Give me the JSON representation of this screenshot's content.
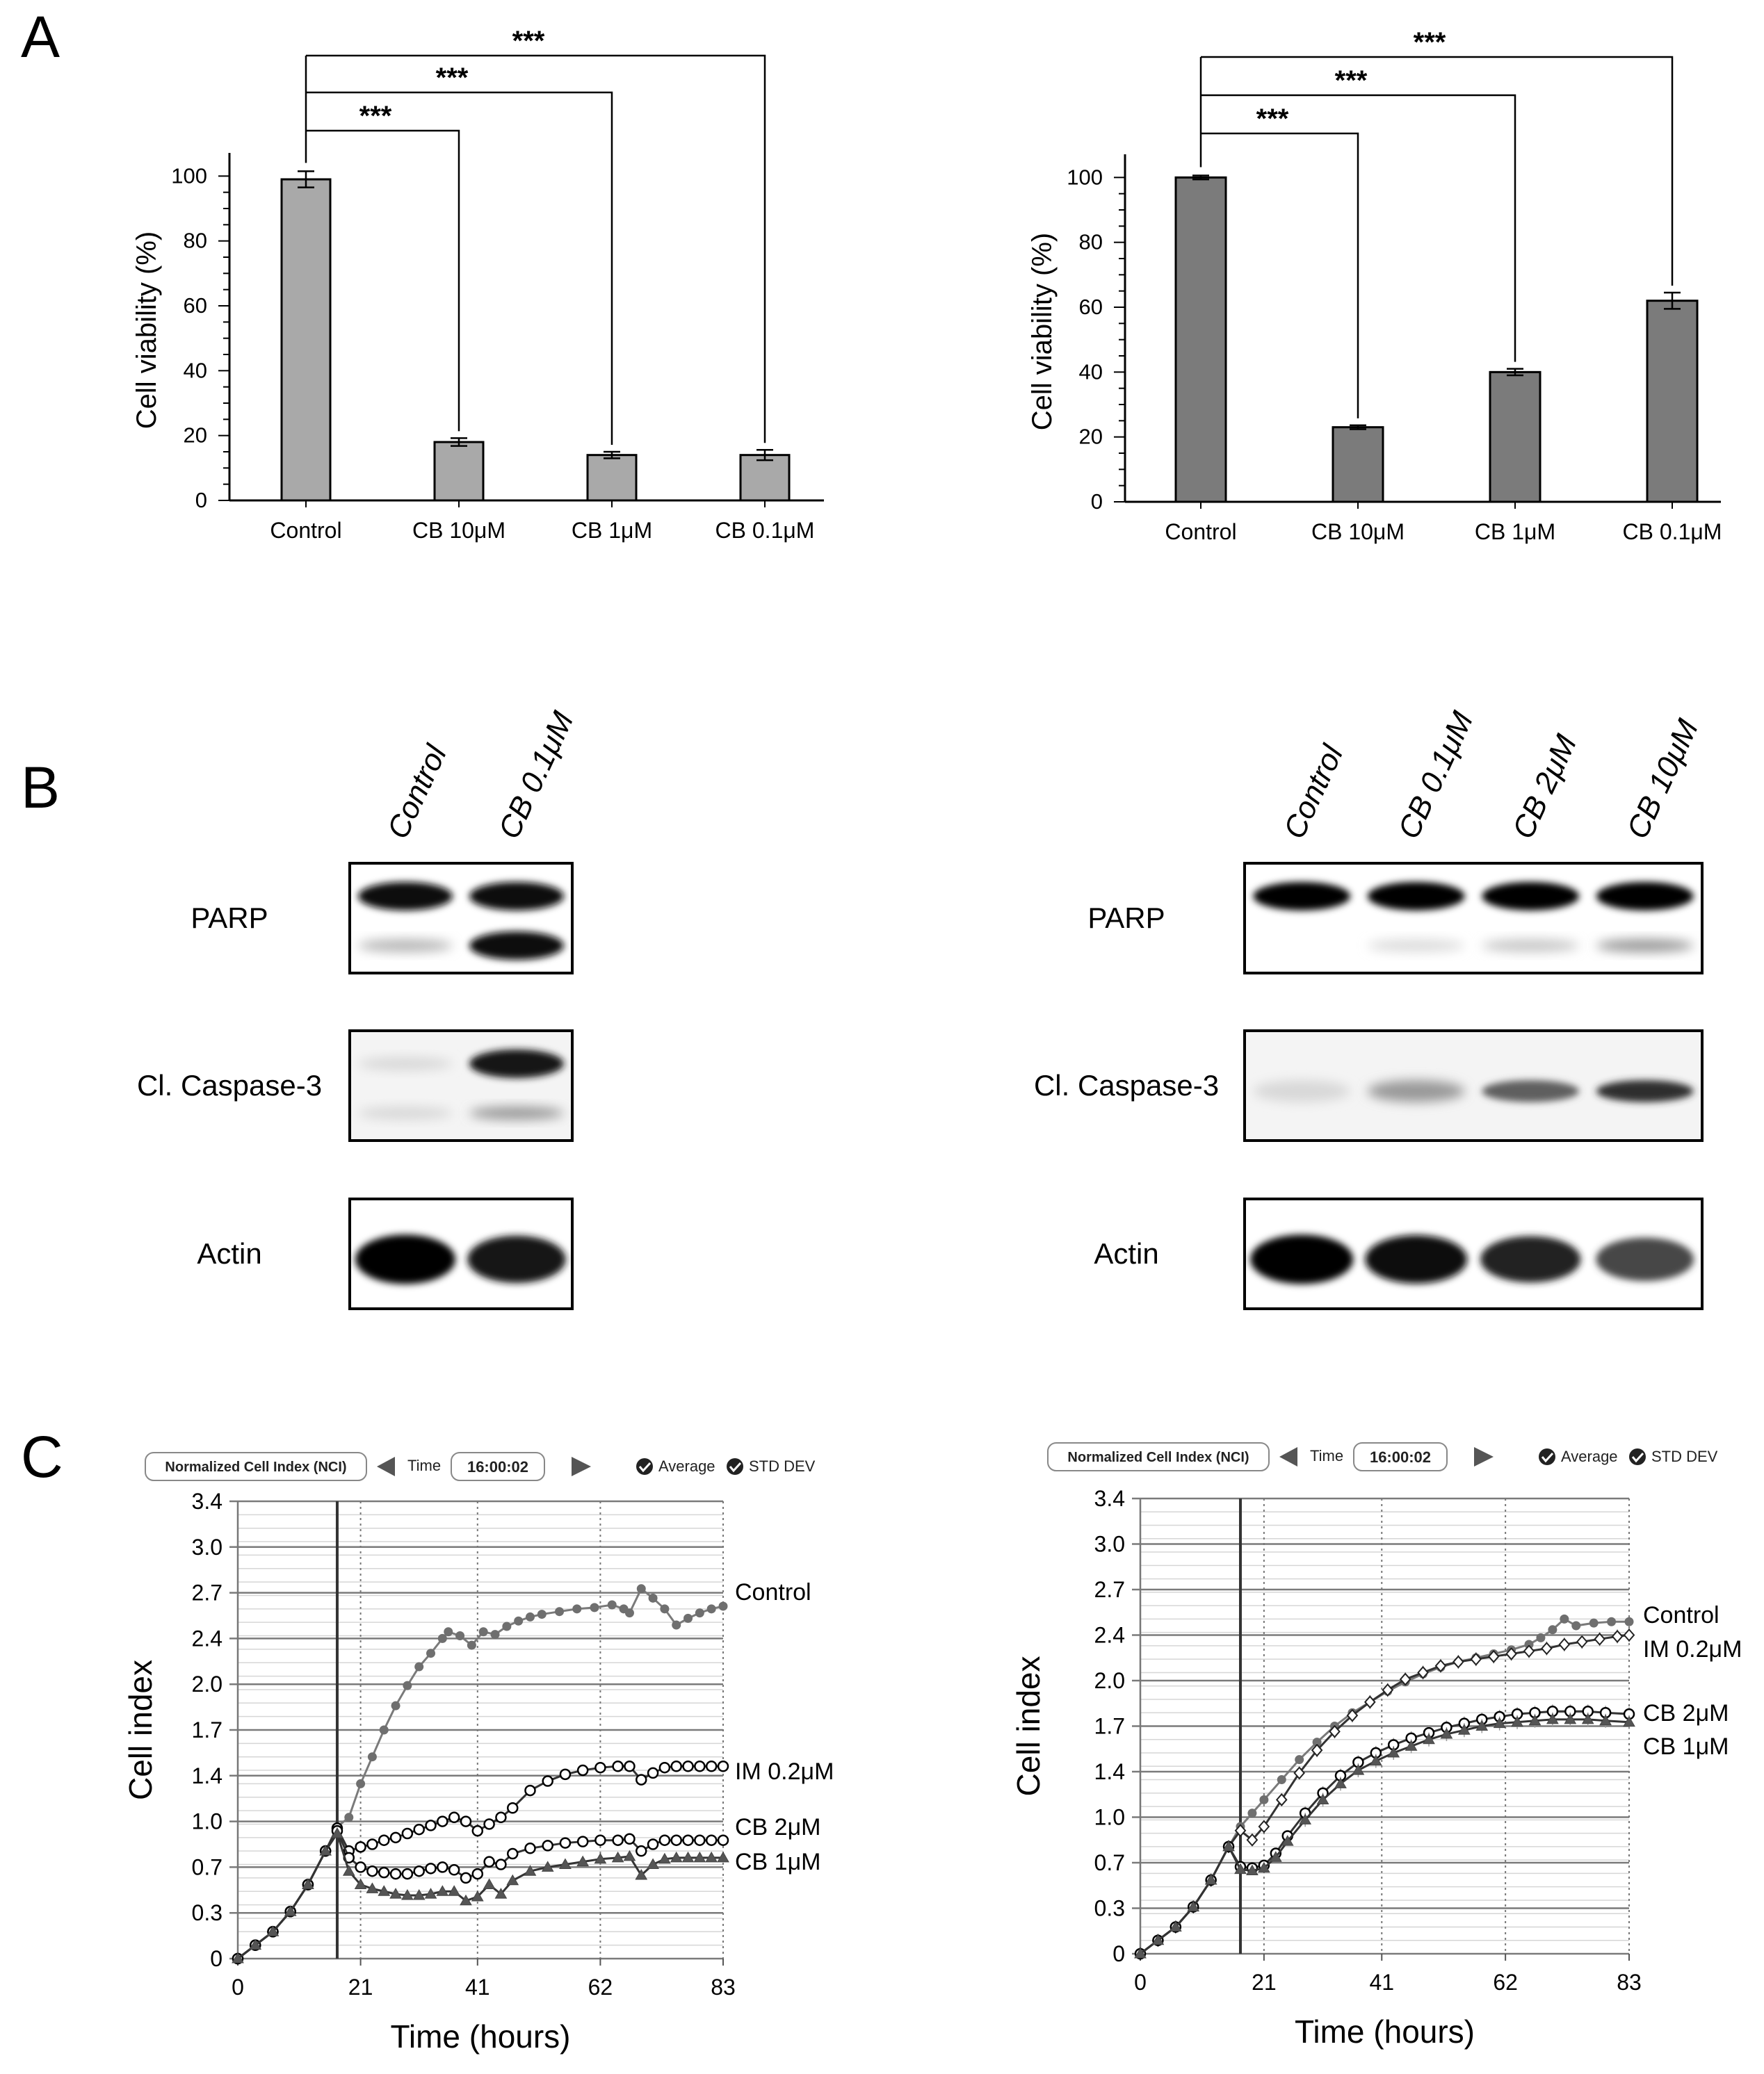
{
  "panel_labels": [
    "A",
    "B",
    "C"
  ],
  "chart_data": [
    {
      "id": "A-left",
      "type": "bar",
      "title": "",
      "xlabel": "",
      "ylabel": "Cell viability (%)",
      "categories": [
        "Control",
        "CB 10μM",
        "CB 1μM",
        "CB 0.1μM"
      ],
      "values": [
        99,
        18,
        14,
        14
      ],
      "errors": [
        2.5,
        1.2,
        1.0,
        1.6
      ],
      "ylim": [
        0,
        105
      ],
      "yticks": [
        0,
        20,
        40,
        60,
        80,
        100
      ],
      "bar_color": "#a9a9a9",
      "significance": [
        {
          "from": "Control",
          "to": "CB 10μM",
          "label": "***"
        },
        {
          "from": "Control",
          "to": "CB 1μM",
          "label": "***"
        },
        {
          "from": "Control",
          "to": "CB 0.1μM",
          "label": "***"
        }
      ]
    },
    {
      "id": "A-right",
      "type": "bar",
      "title": "",
      "xlabel": "",
      "ylabel": "Cell viability (%)",
      "categories": [
        "Control",
        "CB 10μM",
        "CB 1μM",
        "CB 0.1μM"
      ],
      "values": [
        100,
        23,
        40,
        62
      ],
      "errors": [
        0.6,
        0.6,
        1.0,
        2.5
      ],
      "ylim": [
        0,
        105
      ],
      "yticks": [
        0,
        20,
        40,
        60,
        80,
        100
      ],
      "bar_color": "#7b7b7b",
      "significance": [
        {
          "from": "Control",
          "to": "CB 10μM",
          "label": "***"
        },
        {
          "from": "Control",
          "to": "CB 1μM",
          "label": "***"
        },
        {
          "from": "Control",
          "to": "CB 0.1μM",
          "label": "***"
        }
      ]
    },
    {
      "id": "C-left",
      "type": "line",
      "xlabel": "Time (hours)",
      "ylabel": "Cell index",
      "xlim": [
        0,
        83
      ],
      "ylim": [
        0,
        3.4
      ],
      "xticks": [
        0,
        21,
        41,
        62,
        83
      ],
      "ytick_labels": [
        "0",
        "0.3",
        "0.7",
        "1.0",
        "1.4",
        "1.7",
        "2.0",
        "2.4",
        "2.7",
        "3.0",
        "3.4"
      ],
      "treatment_time": 17,
      "ui": {
        "nci_label": "Normalized Cell Index (NCI)",
        "time_label": "Time",
        "time_value": "16:00:02",
        "average_label": "Average",
        "stddev_label": "STD DEV"
      },
      "series": [
        {
          "name": "Control",
          "marker": "filled-circle",
          "x": [
            0,
            3,
            6,
            9,
            12,
            15,
            17,
            19,
            21,
            23,
            25,
            27,
            29,
            31,
            33,
            35,
            36,
            38,
            40,
            42,
            44,
            46,
            48,
            50,
            52,
            55,
            58,
            61,
            64,
            66,
            67,
            69,
            71,
            73,
            75,
            77,
            79,
            81,
            83
          ],
          "y": [
            0,
            0.1,
            0.2,
            0.35,
            0.55,
            0.8,
            0.98,
            1.05,
            1.3,
            1.5,
            1.7,
            1.88,
            2.03,
            2.17,
            2.27,
            2.38,
            2.43,
            2.4,
            2.33,
            2.43,
            2.41,
            2.47,
            2.51,
            2.54,
            2.56,
            2.58,
            2.6,
            2.61,
            2.63,
            2.6,
            2.57,
            2.75,
            2.68,
            2.6,
            2.48,
            2.53,
            2.57,
            2.6,
            2.62
          ]
        },
        {
          "name": "IM 0.2μM",
          "marker": "open-circle",
          "x": [
            0,
            3,
            6,
            9,
            12,
            15,
            17,
            19,
            21,
            23,
            25,
            27,
            29,
            31,
            33,
            35,
            37,
            39,
            41,
            43,
            45,
            47,
            50,
            53,
            56,
            59,
            62,
            65,
            67,
            69,
            71,
            73,
            75,
            77,
            79,
            81,
            83
          ],
          "y": [
            0,
            0.1,
            0.2,
            0.35,
            0.55,
            0.8,
            0.97,
            0.8,
            0.83,
            0.85,
            0.88,
            0.9,
            0.93,
            0.96,
            0.99,
            1.02,
            1.05,
            1.02,
            0.95,
            1.0,
            1.05,
            1.12,
            1.25,
            1.32,
            1.37,
            1.4,
            1.42,
            1.43,
            1.43,
            1.33,
            1.38,
            1.42,
            1.43,
            1.43,
            1.43,
            1.43,
            1.43
          ]
        },
        {
          "name": "CB 2μM",
          "marker": "open-circle",
          "x": [
            0,
            3,
            6,
            9,
            12,
            15,
            17,
            19,
            21,
            23,
            25,
            27,
            29,
            31,
            33,
            35,
            37,
            39,
            41,
            43,
            45,
            47,
            50,
            53,
            56,
            59,
            62,
            65,
            67,
            69,
            71,
            73,
            75,
            77,
            79,
            81,
            83
          ],
          "y": [
            0,
            0.1,
            0.2,
            0.35,
            0.55,
            0.8,
            0.95,
            0.75,
            0.68,
            0.65,
            0.64,
            0.63,
            0.63,
            0.65,
            0.67,
            0.68,
            0.66,
            0.6,
            0.63,
            0.72,
            0.7,
            0.78,
            0.82,
            0.84,
            0.86,
            0.87,
            0.88,
            0.88,
            0.89,
            0.8,
            0.85,
            0.88,
            0.88,
            0.88,
            0.88,
            0.88,
            0.88
          ]
        },
        {
          "name": "CB 1μM",
          "marker": "filled-triangle",
          "x": [
            0,
            3,
            6,
            9,
            12,
            15,
            17,
            19,
            21,
            23,
            25,
            27,
            29,
            31,
            33,
            35,
            37,
            39,
            41,
            43,
            45,
            47,
            50,
            53,
            56,
            59,
            62,
            65,
            67,
            69,
            71,
            73,
            75,
            77,
            79,
            81,
            83
          ],
          "y": [
            0,
            0.1,
            0.2,
            0.35,
            0.55,
            0.8,
            0.93,
            0.65,
            0.55,
            0.52,
            0.5,
            0.48,
            0.47,
            0.47,
            0.48,
            0.5,
            0.5,
            0.43,
            0.46,
            0.55,
            0.48,
            0.58,
            0.65,
            0.68,
            0.7,
            0.72,
            0.74,
            0.75,
            0.76,
            0.62,
            0.7,
            0.74,
            0.75,
            0.75,
            0.75,
            0.75,
            0.75
          ]
        }
      ]
    },
    {
      "id": "C-right",
      "type": "line",
      "xlabel": "Time (hours)",
      "ylabel": "Cell index",
      "xlim": [
        0,
        83
      ],
      "ylim": [
        0,
        3.4
      ],
      "xticks": [
        0,
        21,
        41,
        62,
        83
      ],
      "ytick_labels": [
        "0",
        "0.3",
        "0.7",
        "1.0",
        "1.4",
        "1.7",
        "2.0",
        "2.4",
        "2.7",
        "3.0",
        "3.4"
      ],
      "treatment_time": 17,
      "ui": {
        "nci_label": "Normalized Cell Index (NCI)",
        "time_label": "Time",
        "time_value": "16:00:02",
        "average_label": "Average",
        "stddev_label": "STD DEV"
      },
      "series": [
        {
          "name": "Control",
          "marker": "filled-circle",
          "x": [
            0,
            3,
            6,
            9,
            12,
            15,
            17,
            19,
            21,
            24,
            27,
            30,
            33,
            36,
            39,
            42,
            45,
            48,
            51,
            54,
            57,
            60,
            63,
            66,
            68,
            70,
            72,
            74,
            77,
            80,
            83
          ],
          "y": [
            0,
            0.1,
            0.2,
            0.35,
            0.55,
            0.8,
            0.95,
            1.05,
            1.15,
            1.3,
            1.45,
            1.58,
            1.7,
            1.8,
            1.88,
            1.96,
            2.03,
            2.09,
            2.14,
            2.18,
            2.21,
            2.24,
            2.27,
            2.31,
            2.36,
            2.42,
            2.5,
            2.45,
            2.47,
            2.48,
            2.48
          ]
        },
        {
          "name": "IM 0.2μM",
          "marker": "open-diamond",
          "x": [
            0,
            3,
            6,
            9,
            12,
            15,
            17,
            19,
            21,
            24,
            27,
            30,
            33,
            36,
            39,
            42,
            45,
            48,
            51,
            54,
            57,
            60,
            63,
            66,
            69,
            72,
            75,
            78,
            81,
            83
          ],
          "y": [
            0,
            0.1,
            0.2,
            0.35,
            0.55,
            0.8,
            0.92,
            0.85,
            0.95,
            1.15,
            1.35,
            1.52,
            1.66,
            1.78,
            1.88,
            1.97,
            2.05,
            2.1,
            2.15,
            2.18,
            2.2,
            2.22,
            2.24,
            2.26,
            2.28,
            2.31,
            2.33,
            2.35,
            2.37,
            2.38
          ]
        },
        {
          "name": "CB 2μM",
          "marker": "open-circle",
          "x": [
            0,
            3,
            6,
            9,
            12,
            15,
            17,
            19,
            21,
            23,
            25,
            28,
            31,
            34,
            37,
            40,
            43,
            46,
            49,
            52,
            55,
            58,
            61,
            64,
            67,
            70,
            73,
            76,
            79,
            83
          ],
          "y": [
            0,
            0.1,
            0.2,
            0.35,
            0.55,
            0.8,
            0.65,
            0.64,
            0.66,
            0.75,
            0.88,
            1.05,
            1.2,
            1.33,
            1.43,
            1.5,
            1.56,
            1.61,
            1.65,
            1.69,
            1.72,
            1.75,
            1.77,
            1.79,
            1.8,
            1.81,
            1.81,
            1.81,
            1.8,
            1.79
          ]
        },
        {
          "name": "CB 1μM",
          "marker": "filled-triangle",
          "x": [
            0,
            3,
            6,
            9,
            12,
            15,
            17,
            19,
            21,
            23,
            25,
            28,
            31,
            34,
            37,
            40,
            43,
            46,
            49,
            52,
            55,
            58,
            61,
            64,
            67,
            70,
            73,
            76,
            79,
            83
          ],
          "y": [
            0,
            0.1,
            0.2,
            0.35,
            0.55,
            0.8,
            0.63,
            0.62,
            0.64,
            0.72,
            0.84,
            1.0,
            1.15,
            1.27,
            1.37,
            1.44,
            1.5,
            1.55,
            1.6,
            1.64,
            1.67,
            1.7,
            1.72,
            1.73,
            1.74,
            1.75,
            1.75,
            1.75,
            1.74,
            1.73
          ]
        }
      ]
    }
  ],
  "blots": [
    {
      "id": "B-left",
      "lanes": [
        "Control",
        "CB 0.1μM"
      ],
      "rows": [
        {
          "label": "PARP",
          "bands": [
            [
              0.95,
              0.22
            ],
            [
              0.95,
              0.95
            ]
          ]
        },
        {
          "label": "Cl. Caspase-3",
          "bands": [
            [
              0.08,
              0.08
            ],
            [
              0.9,
              0.35
            ]
          ]
        },
        {
          "label": "Actin",
          "bands": [
            [
              1.0
            ],
            [
              0.9
            ]
          ]
        }
      ]
    },
    {
      "id": "B-right",
      "lanes": [
        "Control",
        "CB 0.1μM",
        "CB 2μM",
        "CB 10μM"
      ],
      "rows": [
        {
          "label": "PARP",
          "bands": [
            [
              1.0,
              0.0
            ],
            [
              1.0,
              0.06
            ],
            [
              1.0,
              0.15
            ],
            [
              1.0,
              0.35
            ]
          ]
        },
        {
          "label": "Cl. Caspase-3",
          "bands": [
            [
              0.08
            ],
            [
              0.35
            ],
            [
              0.6
            ],
            [
              0.8
            ]
          ]
        },
        {
          "label": "Actin",
          "bands": [
            [
              1.0
            ],
            [
              0.95
            ],
            [
              0.85
            ],
            [
              0.7
            ]
          ]
        }
      ]
    }
  ]
}
